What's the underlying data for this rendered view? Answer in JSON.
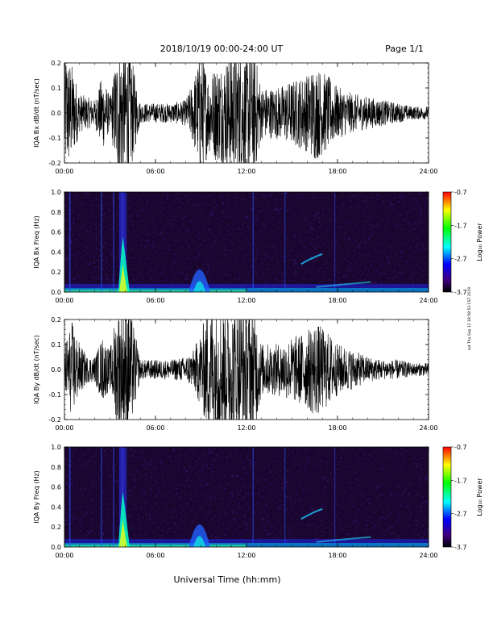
{
  "header": {
    "title": "2018/10/19   00:00-24:00 UT",
    "page_label": "Page 1/1"
  },
  "side_note": "sat Thu Sep 12 18:58:53 CST 2019",
  "x_axis_label": "Universal Time (hh:mm)",
  "x_ticks": [
    "00:00",
    "06:00",
    "12:00",
    "18:00",
    "24:00"
  ],
  "colorbar": {
    "label": "Log₁₀ Power",
    "ticks": [
      "-0.7",
      "-1.7",
      "-2.7",
      "-3.7"
    ],
    "colors": [
      "#ff0000",
      "#ffff00",
      "#00ff00",
      "#00ffff",
      "#0000ff",
      "#400080",
      "#000000"
    ]
  },
  "chart_data": [
    {
      "type": "line",
      "ylabel": "IQA Bx dB/dt (nT/sec)",
      "xlim": [
        0,
        24
      ],
      "ylim": [
        -0.2,
        0.2
      ],
      "yticks": [
        "0.2",
        "0.1",
        "0.0",
        "-0.1",
        "-0.2"
      ],
      "series": [
        {
          "x_hours": [
            0,
            0.5,
            1,
            1.5,
            2,
            2.5,
            3,
            3.5,
            3.8,
            4,
            4.3,
            5,
            6,
            7,
            8,
            8.5,
            9,
            9.5,
            10,
            10.5,
            11,
            11.5,
            12,
            12.5,
            13,
            14,
            15,
            16,
            16.5,
            17,
            17.5,
            18,
            19,
            20,
            21,
            22,
            23,
            24
          ],
          "amplitude": [
            0.2,
            0.15,
            0.06,
            0.05,
            0.04,
            0.12,
            0.05,
            0.2,
            0.2,
            0.2,
            0.2,
            0.03,
            0.03,
            0.03,
            0.04,
            0.1,
            0.2,
            0.12,
            0.15,
            0.16,
            0.2,
            0.2,
            0.18,
            0.2,
            0.08,
            0.08,
            0.1,
            0.12,
            0.15,
            0.13,
            0.11,
            0.08,
            0.06,
            0.05,
            0.04,
            0.03,
            0.02,
            0.02
          ]
        }
      ]
    },
    {
      "type": "heatmap",
      "ylabel": "IQA Bx Freq (Hz)",
      "xlim": [
        0,
        24
      ],
      "ylim": [
        0.0,
        1.0
      ],
      "yticks": [
        "1.0",
        "0.8",
        "0.6",
        "0.4",
        "0.2",
        "0.0"
      ],
      "zlim": [
        -3.7,
        -0.7
      ]
    },
    {
      "type": "line",
      "ylabel": "IQA By dB/dt (nT/sec)",
      "xlim": [
        0,
        24
      ],
      "ylim": [
        -0.2,
        0.2
      ],
      "yticks": [
        "0.2",
        "0.1",
        "0.0",
        "-0.1",
        "-0.2"
      ],
      "series": [
        {
          "x_hours": [
            0,
            0.5,
            1,
            1.5,
            2,
            2.5,
            3,
            3.5,
            3.8,
            4,
            4.3,
            5,
            6,
            7,
            8,
            8.5,
            9,
            9.5,
            10,
            10.5,
            11,
            11.5,
            12,
            12.5,
            13,
            14,
            15,
            16,
            16.5,
            17,
            17.5,
            18,
            19,
            20,
            21,
            22,
            23,
            24
          ],
          "amplitude": [
            0.08,
            0.15,
            0.08,
            0.04,
            0.04,
            0.1,
            0.06,
            0.2,
            0.2,
            0.2,
            0.2,
            0.03,
            0.03,
            0.03,
            0.04,
            0.06,
            0.12,
            0.2,
            0.2,
            0.2,
            0.2,
            0.2,
            0.2,
            0.2,
            0.08,
            0.08,
            0.1,
            0.12,
            0.15,
            0.13,
            0.11,
            0.08,
            0.06,
            0.04,
            0.03,
            0.03,
            0.02,
            0.02
          ]
        }
      ]
    },
    {
      "type": "heatmap",
      "ylabel": "IQA By Freq (Hz)",
      "xlim": [
        0,
        24
      ],
      "ylim": [
        0.0,
        1.0
      ],
      "yticks": [
        "1.0",
        "0.8",
        "0.6",
        "0.4",
        "0.2",
        "0.0"
      ],
      "zlim": [
        -3.7,
        -0.7
      ]
    }
  ]
}
